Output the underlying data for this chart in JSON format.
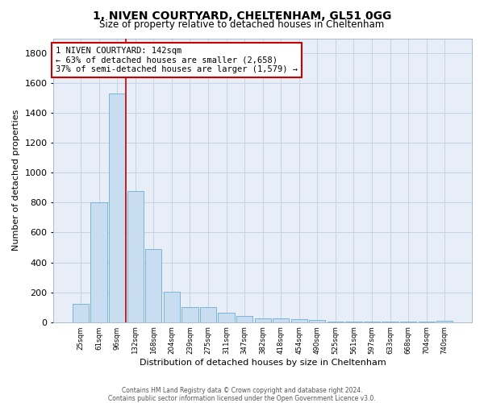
{
  "title": "1, NIVEN COURTYARD, CHELTENHAM, GL51 0GG",
  "subtitle": "Size of property relative to detached houses in Cheltenham",
  "xlabel": "Distribution of detached houses by size in Cheltenham",
  "ylabel": "Number of detached properties",
  "categories": [
    "25sqm",
    "61sqm",
    "96sqm",
    "132sqm",
    "168sqm",
    "204sqm",
    "239sqm",
    "275sqm",
    "311sqm",
    "347sqm",
    "382sqm",
    "418sqm",
    "454sqm",
    "490sqm",
    "525sqm",
    "561sqm",
    "597sqm",
    "633sqm",
    "668sqm",
    "704sqm",
    "740sqm"
  ],
  "values": [
    120,
    800,
    1530,
    880,
    490,
    205,
    100,
    100,
    65,
    42,
    28,
    25,
    20,
    12,
    5,
    5,
    4,
    3,
    2,
    2,
    10
  ],
  "bar_color": "#c9ddf0",
  "bar_edge_color": "#6baed6",
  "grid_color": "#c8d4e4",
  "vline_x": 2.5,
  "vline_color": "#cc0000",
  "annotation_text_line1": "1 NIVEN COURTYARD: 142sqm",
  "annotation_text_line2": "← 63% of detached houses are smaller (2,658)",
  "annotation_text_line3": "37% of semi-detached houses are larger (1,579) →",
  "annotation_box_facecolor": "#ffffff",
  "annotation_box_edgecolor": "#cc0000",
  "ylim": [
    0,
    1900
  ],
  "yticks": [
    0,
    200,
    400,
    600,
    800,
    1000,
    1200,
    1400,
    1600,
    1800
  ],
  "footer_line1": "Contains HM Land Registry data © Crown copyright and database right 2024.",
  "footer_line2": "Contains public sector information licensed under the Open Government Licence v3.0.",
  "bg_color": "#ffffff",
  "plot_bg_color": "#e8eef8"
}
